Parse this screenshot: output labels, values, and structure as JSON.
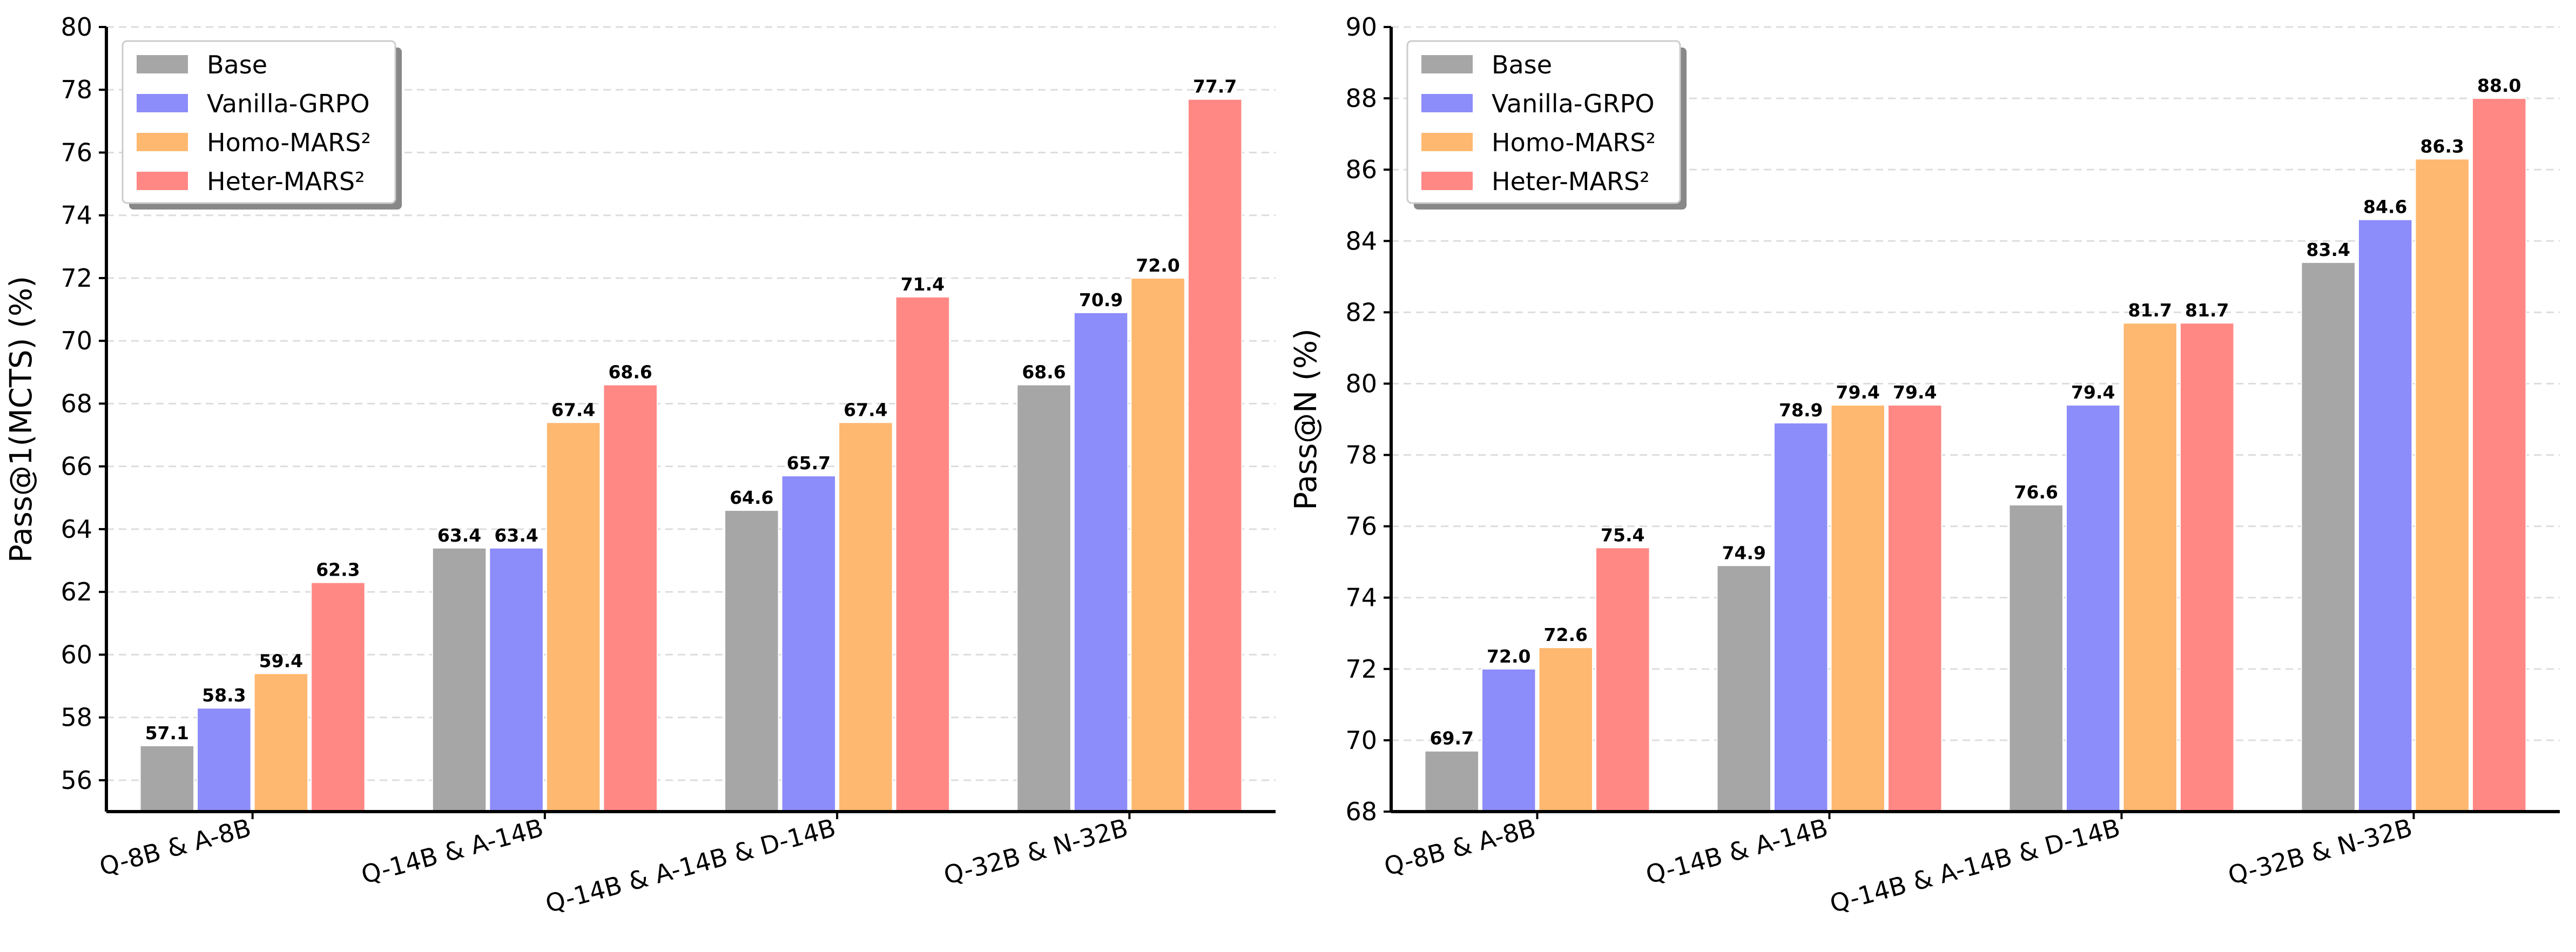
{
  "chart_data": [
    {
      "type": "bar",
      "title": "",
      "xlabel": "",
      "ylabel": "Pass@1(MCTS) (%)",
      "ylim": [
        55,
        80
      ],
      "yticks": [
        56,
        58,
        60,
        62,
        64,
        66,
        68,
        70,
        72,
        74,
        76,
        78,
        80
      ],
      "grid": true,
      "legend_position": "top-left",
      "categories": [
        "Q-8B & A-8B",
        "Q-14B & A-14B",
        "Q-14B & A-14B & D-14B",
        "Q-32B & N-32B"
      ],
      "series": [
        {
          "name": "Base",
          "color": "#a6a6a6",
          "values": [
            57.1,
            63.4,
            64.6,
            68.6
          ],
          "labels": [
            "57.1",
            "63.4",
            "64.6",
            "68.6"
          ]
        },
        {
          "name": "Vanilla-GRPO",
          "color": "#8c8cfa",
          "values": [
            58.3,
            63.4,
            65.7,
            70.9
          ],
          "labels": [
            "58.3",
            "63.4",
            "65.7",
            "70.9"
          ]
        },
        {
          "name": "Homo-MARS²",
          "color": "#ffb870",
          "values": [
            59.4,
            67.4,
            67.4,
            72.0
          ],
          "labels": [
            "59.4",
            "67.4",
            "67.4",
            "72.0"
          ]
        },
        {
          "name": "Heter-MARS²",
          "color": "#ff8885",
          "values": [
            62.3,
            68.6,
            71.4,
            77.7
          ],
          "labels": [
            "62.3",
            "68.6",
            "71.4",
            "77.7"
          ]
        }
      ]
    },
    {
      "type": "bar",
      "title": "",
      "xlabel": "",
      "ylabel": "Pass@N (%)",
      "ylim": [
        68,
        90
      ],
      "yticks": [
        68,
        70,
        72,
        74,
        76,
        78,
        80,
        82,
        84,
        86,
        88,
        90
      ],
      "grid": true,
      "legend_position": "top-left",
      "categories": [
        "Q-8B & A-8B",
        "Q-14B & A-14B",
        "Q-14B & A-14B & D-14B",
        "Q-32B & N-32B"
      ],
      "series": [
        {
          "name": "Base",
          "color": "#a6a6a6",
          "values": [
            69.7,
            74.9,
            76.6,
            83.4
          ],
          "labels": [
            "69.7",
            "74.9",
            "76.6",
            "83.4"
          ]
        },
        {
          "name": "Vanilla-GRPO",
          "color": "#8c8cfa",
          "values": [
            72.0,
            78.9,
            79.4,
            84.6
          ],
          "labels": [
            "72.0",
            "78.9",
            "79.4",
            "84.6"
          ]
        },
        {
          "name": "Homo-MARS²",
          "color": "#ffb870",
          "values": [
            72.6,
            79.4,
            81.7,
            86.3
          ],
          "labels": [
            "72.6",
            "79.4",
            "81.7",
            "86.3"
          ]
        },
        {
          "name": "Heter-MARS²",
          "color": "#ff8885",
          "values": [
            75.4,
            79.4,
            81.7,
            88.0
          ],
          "labels": [
            "75.4",
            "79.4",
            "81.7",
            "88.0"
          ]
        }
      ]
    }
  ]
}
